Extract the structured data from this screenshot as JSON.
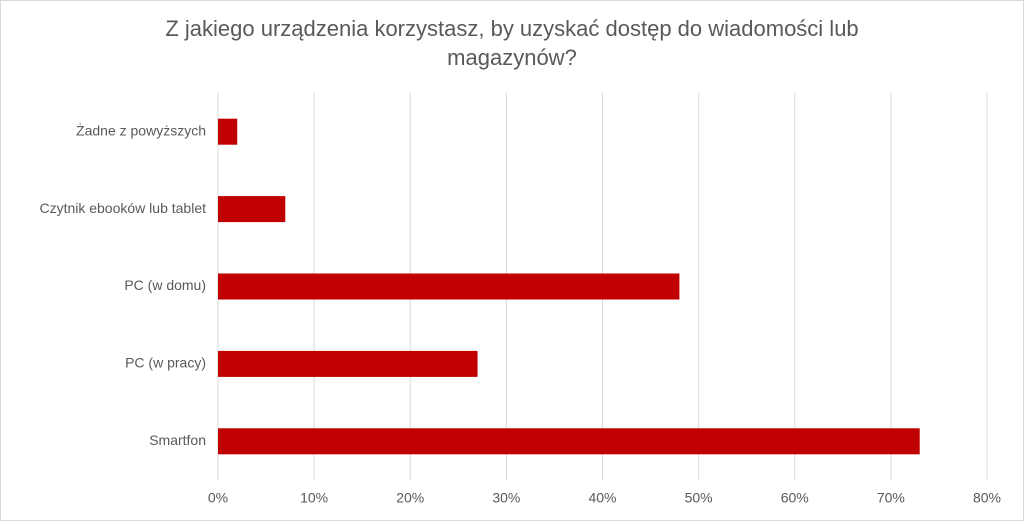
{
  "chart_data": {
    "type": "barh",
    "title": "Z jakiego urządzenia korzystasz, by uzyskać dostęp do wiadomości lub magazynów?",
    "categories": [
      "Żadne z powyższych",
      "Czytnik ebooków lub tablet",
      "PC (w domu)",
      "PC (w pracy)",
      "Smartfon"
    ],
    "values": [
      2,
      7,
      48,
      27,
      73
    ],
    "color": "#c00000",
    "xlim": [
      0,
      80
    ],
    "xticks": [
      {
        "value": 0,
        "label": "0%"
      },
      {
        "value": 10,
        "label": "10%"
      },
      {
        "value": 20,
        "label": "20%"
      },
      {
        "value": 30,
        "label": "30%"
      },
      {
        "value": 40,
        "label": "40%"
      },
      {
        "value": 50,
        "label": "50%"
      },
      {
        "value": 60,
        "label": "60%"
      },
      {
        "value": 70,
        "label": "70%"
      },
      {
        "value": 80,
        "label": "80%"
      }
    ],
    "grid": true
  }
}
